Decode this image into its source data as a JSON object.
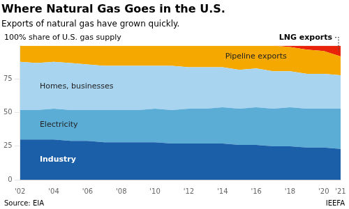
{
  "chart_data": {
    "type": "area",
    "title": "Where Natural Gas Goes in the U.S.",
    "subtitle": "Exports of natural gas have grown quickly.",
    "ylabel": "100% share of U.S. gas supply",
    "source": "Source: EIA",
    "credit": "IEEFA",
    "stacked": true,
    "x": [
      2002,
      2003,
      2004,
      2005,
      2006,
      2007,
      2008,
      2009,
      2010,
      2011,
      2012,
      2013,
      2014,
      2015,
      2016,
      2017,
      2018,
      2019,
      2020,
      2021
    ],
    "series": [
      {
        "name": "Industry",
        "color": "#1a5fa8",
        "values": [
          30,
          30,
          30,
          29,
          29,
          28,
          28,
          28,
          28,
          27,
          27,
          27,
          27,
          26,
          26,
          25,
          25,
          24,
          24,
          23
        ]
      },
      {
        "name": "Electricity",
        "color": "#5badd6",
        "values": [
          22,
          22,
          23,
          23,
          23,
          24,
          24,
          24,
          25,
          25,
          26,
          26,
          27,
          27,
          28,
          28,
          29,
          29,
          29,
          30
        ]
      },
      {
        "name": "Homes, businesses",
        "color": "#a8d4f0",
        "values": [
          36,
          35,
          35,
          35,
          34,
          33,
          33,
          33,
          32,
          33,
          31,
          31,
          30,
          29,
          29,
          28,
          27,
          26,
          26,
          25
        ]
      },
      {
        "name": "Pipeline exports",
        "color": "#f5a800",
        "values": [
          12,
          13,
          12,
          13,
          14,
          15,
          15,
          15,
          15,
          15,
          16,
          16,
          16,
          18,
          17,
          19,
          18,
          18,
          17,
          14
        ]
      },
      {
        "name": "LNG exports",
        "color": "#e8230a",
        "values": [
          0,
          0,
          0,
          0,
          0,
          0,
          0,
          0,
          0,
          0,
          0,
          0,
          0,
          0,
          0,
          0,
          1,
          3,
          4,
          8
        ]
      }
    ],
    "xlim": [
      2002,
      2021
    ],
    "xticks": [
      {
        "value": 2002,
        "label": "'02"
      },
      {
        "value": 2004,
        "label": "'04"
      },
      {
        "value": 2006,
        "label": "'06"
      },
      {
        "value": 2008,
        "label": "'08"
      },
      {
        "value": 2010,
        "label": "'10"
      },
      {
        "value": 2012,
        "label": "'12"
      },
      {
        "value": 2014,
        "label": "'14"
      },
      {
        "value": 2016,
        "label": "'16"
      },
      {
        "value": 2018,
        "label": "'18"
      },
      {
        "value": 2020,
        "label": "'20"
      },
      {
        "value": 2021,
        "label": "'21"
      }
    ],
    "ylim": [
      0,
      100
    ],
    "yticks": [
      0,
      25,
      50,
      75
    ],
    "grid": "y"
  }
}
